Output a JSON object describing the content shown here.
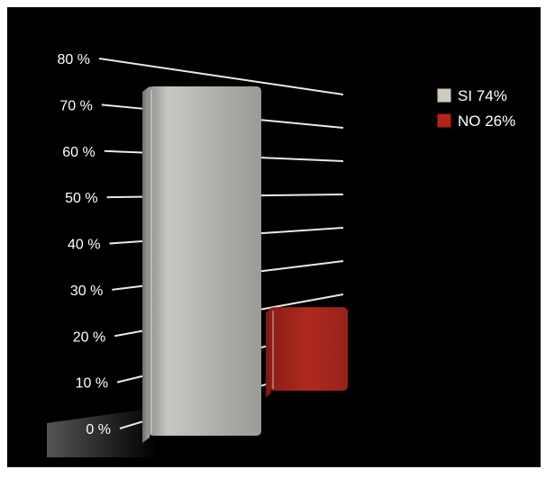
{
  "chart_data": {
    "type": "bar",
    "title": "",
    "xlabel": "",
    "ylabel": "",
    "ylim": [
      0,
      80
    ],
    "yticks": [
      0,
      10,
      20,
      30,
      40,
      50,
      60,
      70,
      80
    ],
    "ytick_labels": [
      "0 %",
      "10 %",
      "20 %",
      "30 %",
      "40 %",
      "50 %",
      "60 %",
      "70 %",
      "80 %"
    ],
    "grid": true,
    "legend_position": "top-right",
    "categories": [
      "SI",
      "NO"
    ],
    "values": [
      74,
      26
    ],
    "legend": [
      {
        "label": "SI 74%",
        "color": "#cfcabd"
      },
      {
        "label": "NO 26%",
        "color": "#b52218"
      }
    ],
    "colors": {
      "background": "#000000",
      "bar_si": "#bdbbb8",
      "bar_no": "#a8281f",
      "grid": "#e8e8e8",
      "text": "#ffffff"
    }
  }
}
